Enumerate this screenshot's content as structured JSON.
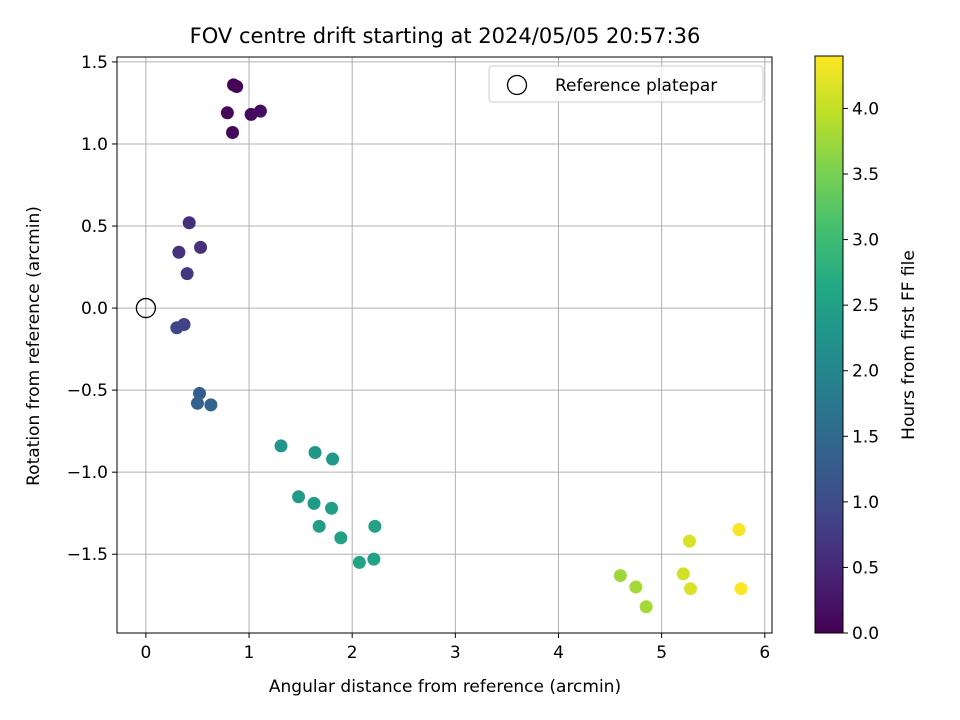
{
  "chart_data": {
    "type": "scatter",
    "title": "FOV centre drift starting at 2024/05/05 20:57:36",
    "xlabel": "Angular distance from reference (arcmin)",
    "ylabel": "Rotation from reference (arcmin)",
    "xlim": [
      -0.28,
      6.07
    ],
    "ylim": [
      -1.98,
      1.53
    ],
    "xticks": [
      0,
      1,
      2,
      3,
      4,
      5,
      6
    ],
    "xtick_labels": [
      "0",
      "1",
      "2",
      "3",
      "4",
      "5",
      "6"
    ],
    "yticks": [
      -1.5,
      -1.0,
      -0.5,
      0.0,
      0.5,
      1.0,
      1.5
    ],
    "ytick_labels": [
      "−1.5",
      "−1.0",
      "−0.5",
      "0.0",
      "0.5",
      "1.0",
      "1.5"
    ],
    "grid": true,
    "legend": {
      "position": "upper-right",
      "entries": [
        "Reference platepar"
      ]
    },
    "reference_point": {
      "x": 0.0,
      "y": 0.0
    },
    "colorbar": {
      "label": "Hours from first FF file",
      "range": [
        0.0,
        4.4
      ],
      "ticks": [
        0.0,
        0.5,
        1.0,
        1.5,
        2.0,
        2.5,
        3.0,
        3.5,
        4.0
      ],
      "tick_labels": [
        "0.0",
        "0.5",
        "1.0",
        "1.5",
        "2.0",
        "2.5",
        "3.0",
        "3.5",
        "4.0"
      ],
      "colormap": "viridis"
    },
    "points": [
      {
        "x": 0.85,
        "y": 1.36,
        "c": 0.02
      },
      {
        "x": 0.88,
        "y": 1.35,
        "c": 0.05
      },
      {
        "x": 0.79,
        "y": 1.19,
        "c": 0.08
      },
      {
        "x": 1.02,
        "y": 1.18,
        "c": 0.12
      },
      {
        "x": 1.11,
        "y": 1.2,
        "c": 0.15
      },
      {
        "x": 0.84,
        "y": 1.07,
        "c": 0.1
      },
      {
        "x": 0.42,
        "y": 0.52,
        "c": 0.6
      },
      {
        "x": 0.32,
        "y": 0.34,
        "c": 0.65
      },
      {
        "x": 0.53,
        "y": 0.37,
        "c": 0.62
      },
      {
        "x": 0.4,
        "y": 0.21,
        "c": 0.7
      },
      {
        "x": 0.37,
        "y": -0.1,
        "c": 0.85
      },
      {
        "x": 0.3,
        "y": -0.12,
        "c": 0.9
      },
      {
        "x": 0.52,
        "y": -0.52,
        "c": 1.3
      },
      {
        "x": 0.5,
        "y": -0.58,
        "c": 1.35
      },
      {
        "x": 0.63,
        "y": -0.59,
        "c": 1.4
      },
      {
        "x": 1.31,
        "y": -0.84,
        "c": 2.25
      },
      {
        "x": 1.64,
        "y": -0.88,
        "c": 2.3
      },
      {
        "x": 1.81,
        "y": -0.92,
        "c": 2.35
      },
      {
        "x": 1.48,
        "y": -1.15,
        "c": 2.4
      },
      {
        "x": 1.63,
        "y": -1.19,
        "c": 2.4
      },
      {
        "x": 1.8,
        "y": -1.22,
        "c": 2.45
      },
      {
        "x": 1.68,
        "y": -1.33,
        "c": 2.45
      },
      {
        "x": 2.22,
        "y": -1.33,
        "c": 2.5
      },
      {
        "x": 1.89,
        "y": -1.4,
        "c": 2.5
      },
      {
        "x": 2.07,
        "y": -1.55,
        "c": 2.55
      },
      {
        "x": 2.21,
        "y": -1.53,
        "c": 2.55
      },
      {
        "x": 4.6,
        "y": -1.63,
        "c": 3.75
      },
      {
        "x": 4.75,
        "y": -1.7,
        "c": 3.8
      },
      {
        "x": 4.85,
        "y": -1.82,
        "c": 3.8
      },
      {
        "x": 5.21,
        "y": -1.62,
        "c": 4.1
      },
      {
        "x": 5.27,
        "y": -1.42,
        "c": 4.15
      },
      {
        "x": 5.28,
        "y": -1.71,
        "c": 4.15
      },
      {
        "x": 5.75,
        "y": -1.35,
        "c": 4.35
      },
      {
        "x": 5.77,
        "y": -1.71,
        "c": 4.4
      }
    ]
  }
}
